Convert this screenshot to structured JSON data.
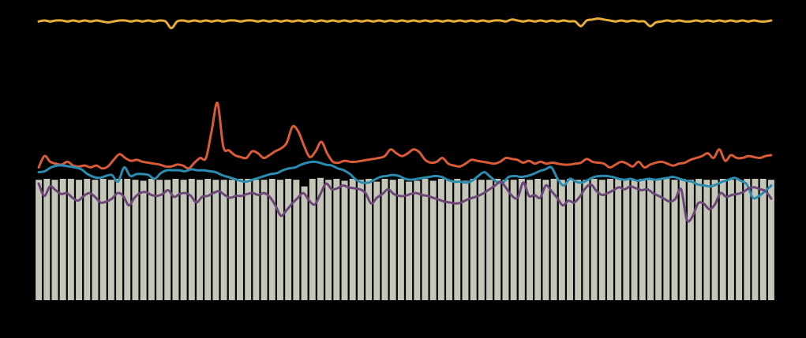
{
  "chart_data": {
    "type": "bar",
    "title": "",
    "xlabel": "",
    "ylabel": "",
    "grid": false,
    "legend": "none",
    "ylim": [
      0,
      300
    ],
    "bars": {
      "color": "#c4c6b8",
      "values": [
        127,
        128,
        127,
        128,
        128,
        127,
        128,
        127,
        128,
        127,
        128,
        128,
        127,
        126,
        128,
        127,
        127,
        128,
        127,
        128,
        127,
        128,
        127,
        127,
        127,
        128,
        128,
        127,
        127,
        128,
        127,
        128,
        127,
        120,
        128,
        129,
        127,
        128,
        126,
        128,
        127,
        128,
        125,
        128,
        127,
        128,
        125,
        126,
        128,
        126,
        128,
        127,
        128,
        126,
        128,
        127,
        127,
        128,
        127,
        127,
        128,
        127,
        128,
        127,
        128,
        127,
        128,
        127,
        127,
        128,
        127,
        128,
        128,
        127,
        127,
        128,
        127,
        128,
        128,
        127,
        128,
        127,
        128,
        127,
        127,
        128,
        127,
        127,
        128,
        128,
        128,
        127
      ]
    },
    "series": [
      {
        "color": "#e8ac3a",
        "values": [
          294,
          295,
          294,
          295,
          295,
          294,
          295,
          294,
          295,
          294,
          295,
          294,
          293,
          294,
          295,
          295,
          294,
          295,
          294,
          295,
          294,
          295,
          294,
          287,
          294,
          295,
          294,
          295,
          294,
          295,
          294,
          295,
          294,
          295,
          295,
          294,
          295,
          295,
          294,
          295,
          294,
          295,
          294,
          295,
          294,
          295,
          294,
          295,
          294,
          295,
          294,
          295,
          294,
          295,
          294,
          295,
          294,
          295,
          294,
          295,
          294,
          295,
          294,
          295,
          294,
          295,
          294,
          295,
          294,
          295,
          294,
          295,
          294,
          295,
          294,
          295,
          294,
          295,
          294,
          295,
          295,
          294,
          296,
          295,
          294,
          295,
          294,
          295,
          294,
          295,
          294,
          295,
          294,
          294,
          289,
          295,
          296,
          297,
          296,
          295,
          294,
          295,
          294,
          295,
          294,
          294,
          289,
          293,
          294,
          295,
          294,
          295,
          294,
          294,
          295,
          294,
          295,
          294,
          295,
          294,
          295,
          294,
          295,
          294,
          295,
          294,
          294,
          295
        ]
      },
      {
        "color": "#d95b38",
        "values": [
          140,
          152,
          146,
          144,
          143,
          146,
          142,
          141,
          142,
          140,
          142,
          139,
          141,
          148,
          154,
          150,
          147,
          148,
          146,
          145,
          144,
          143,
          141,
          141,
          143,
          142,
          139,
          145,
          150,
          150,
          179,
          208,
          162,
          158,
          153,
          151,
          150,
          157,
          155,
          150,
          153,
          157,
          160,
          166,
          183,
          178,
          163,
          151,
          157,
          167,
          155,
          146,
          145,
          147,
          146,
          146,
          147,
          148,
          149,
          150,
          152,
          159,
          155,
          152,
          155,
          159,
          156,
          148,
          145,
          146,
          150,
          144,
          142,
          141,
          144,
          148,
          147,
          146,
          145,
          144,
          146,
          150,
          149,
          148,
          145,
          147,
          144,
          146,
          144,
          145,
          144,
          143,
          143,
          144,
          145,
          149,
          146,
          145,
          144,
          140,
          143,
          146,
          144,
          141,
          146,
          140,
          143,
          145,
          146,
          144,
          142,
          144,
          145,
          148,
          150,
          152,
          155,
          150,
          159,
          147,
          153,
          150,
          150,
          152,
          151,
          150,
          152,
          153
        ]
      },
      {
        "color": "#2b8cb0",
        "values": [
          135,
          136,
          140,
          142,
          142,
          141,
          140,
          138,
          133,
          130,
          129,
          131,
          132,
          125,
          140,
          131,
          133,
          133,
          132,
          128,
          134,
          137,
          137,
          137,
          136,
          138,
          137,
          137,
          136,
          135,
          132,
          130,
          128,
          126,
          125,
          127,
          129,
          131,
          133,
          134,
          137,
          139,
          140,
          143,
          145,
          146,
          145,
          143,
          142,
          139,
          137,
          133,
          127,
          124,
          124,
          127,
          130,
          131,
          132,
          131,
          128,
          127,
          128,
          129,
          130,
          131,
          130,
          127,
          125,
          125,
          124,
          126,
          131,
          135,
          130,
          125,
          124,
          130,
          131,
          130,
          131,
          133,
          136,
          138,
          140,
          128,
          121,
          128,
          125,
          124,
          127,
          130,
          131,
          131,
          130,
          128,
          127,
          128,
          126,
          127,
          128,
          127,
          128,
          129,
          130,
          128,
          126,
          125,
          122,
          121,
          120,
          122,
          125,
          127,
          129,
          126,
          122,
          108,
          110,
          115,
          121
        ]
      },
      {
        "color": "#6b4677",
        "values": [
          123,
          110,
          120,
          116,
          112,
          113,
          108,
          105,
          110,
          113,
          109,
          103,
          104,
          107,
          113,
          110,
          100,
          108,
          113,
          114,
          111,
          110,
          112,
          116,
          109,
          112,
          113,
          110,
          103,
          109,
          110,
          113,
          115,
          111,
          108,
          110,
          110,
          112,
          113,
          111,
          113,
          109,
          100,
          89,
          95,
          102,
          108,
          113,
          105,
          101,
          112,
          123,
          117,
          118,
          121,
          119,
          118,
          117,
          113,
          102,
          108,
          112,
          117,
          112,
          110,
          110,
          112,
          113,
          111,
          110,
          108,
          106,
          104,
          103,
          102,
          103,
          106,
          108,
          110,
          113,
          117,
          121,
          125,
          118,
          110,
          108,
          124,
          110,
          111,
          108,
          121,
          115,
          108,
          100,
          105,
          103,
          109,
          118,
          122,
          115,
          111,
          113,
          116,
          119,
          117,
          120,
          118,
          116,
          117,
          113,
          110,
          107,
          104,
          107,
          117,
          85,
          88,
          102,
          102,
          96,
          101,
          113,
          109,
          111,
          112,
          114,
          118,
          119,
          117,
          115,
          107
        ]
      }
    ]
  }
}
